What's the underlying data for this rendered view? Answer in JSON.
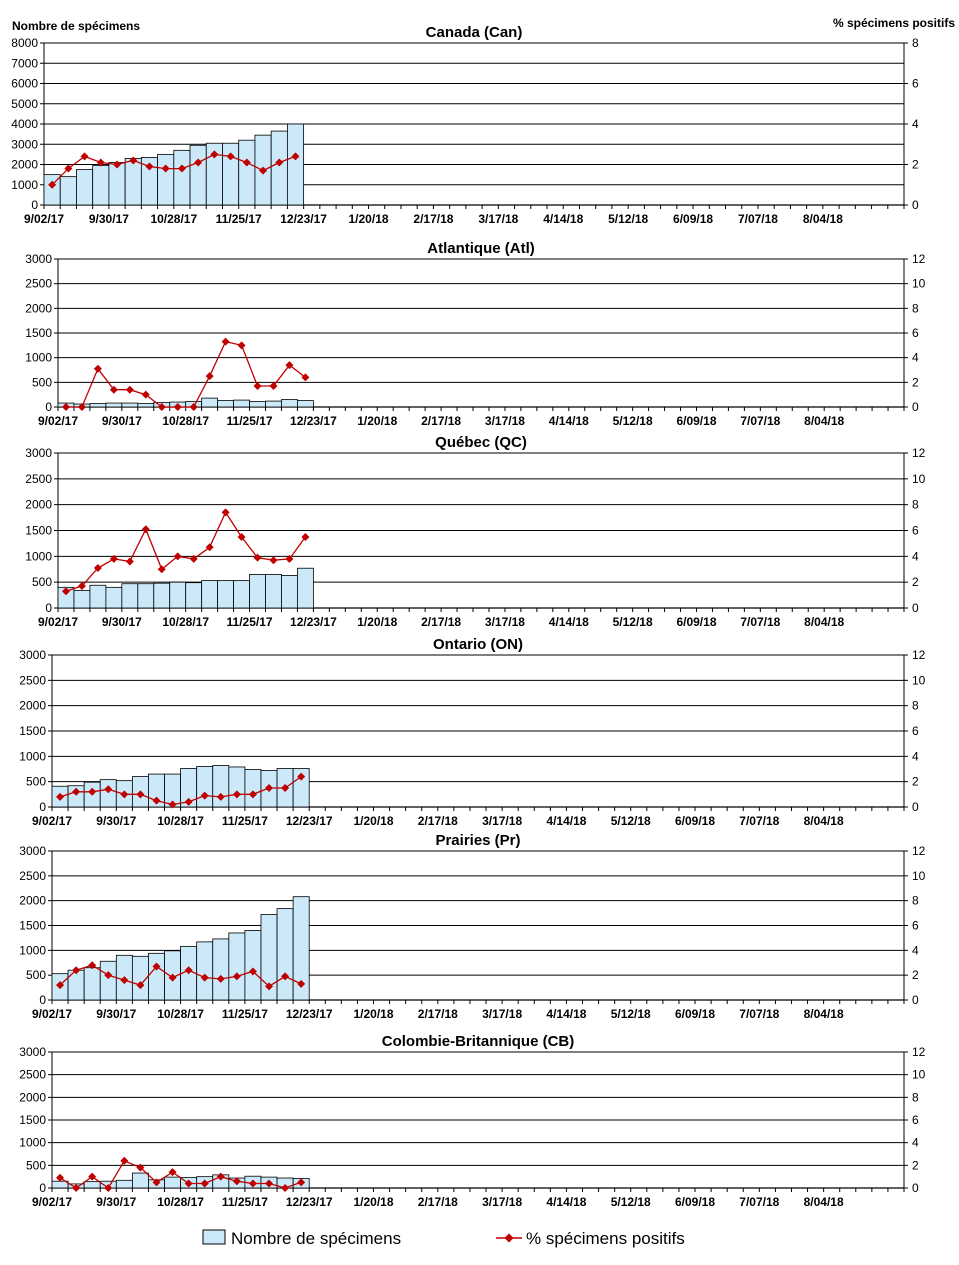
{
  "left_axis_title": "Nombre de spécimens",
  "right_axis_title": "% spécimens positifs",
  "legend": {
    "bars_label": "Nombre de spécimens",
    "line_label": "% spécimens positifs"
  },
  "colors": {
    "bar_fill": "#cce9f9",
    "bar_stroke": "#000000",
    "line": "#c00000",
    "marker": "#c00000"
  },
  "chart_data": [
    {
      "type": "bar",
      "title": "Canada (Can)",
      "x_tick_labels": [
        "9/02/17",
        "9/30/17",
        "10/28/17",
        "11/25/17",
        "12/23/17",
        "1/20/18",
        "2/17/18",
        "3/17/18",
        "4/14/18",
        "5/12/18",
        "6/09/18",
        "7/07/18",
        "8/04/18"
      ],
      "weeks": 53,
      "ylim": [
        0,
        8000
      ],
      "y_ticks": [
        0,
        1000,
        2000,
        3000,
        4000,
        5000,
        6000,
        7000,
        8000
      ],
      "y2lim": [
        0,
        8
      ],
      "y2_ticks": [
        0,
        2,
        4,
        6,
        8
      ],
      "series": [
        {
          "name": "Nombre de spécimens",
          "values": [
            1500,
            1400,
            1750,
            1950,
            2100,
            2300,
            2350,
            2500,
            2700,
            2950,
            3050,
            3050,
            3200,
            3450,
            3650,
            4000
          ]
        },
        {
          "name": "% spécimens positifs",
          "values": [
            1.0,
            1.8,
            2.4,
            2.1,
            2.0,
            2.2,
            1.9,
            1.8,
            1.8,
            2.1,
            2.5,
            2.4,
            2.1,
            1.7,
            2.1,
            2.4
          ]
        }
      ]
    },
    {
      "type": "bar",
      "title": "Atlantique (Atl)",
      "x_tick_labels": [
        "9/02/17",
        "9/30/17",
        "10/28/17",
        "11/25/17",
        "12/23/17",
        "1/20/18",
        "2/17/18",
        "3/17/18",
        "4/14/18",
        "5/12/18",
        "6/09/18",
        "7/07/18",
        "8/04/18"
      ],
      "weeks": 53,
      "ylim": [
        0,
        3000
      ],
      "y_ticks": [
        0,
        500,
        1000,
        1500,
        2000,
        2500,
        3000
      ],
      "y2lim": [
        0,
        12
      ],
      "y2_ticks": [
        0,
        2,
        4,
        6,
        8,
        10,
        12
      ],
      "series": [
        {
          "name": "Nombre de spécimens",
          "values": [
            80,
            60,
            70,
            80,
            80,
            70,
            90,
            100,
            110,
            180,
            130,
            140,
            110,
            120,
            150,
            130
          ]
        },
        {
          "name": "% spécimens positifs",
          "values": [
            0.0,
            0.0,
            3.1,
            1.4,
            1.4,
            1.0,
            0.0,
            0.0,
            0.0,
            2.5,
            5.3,
            5.0,
            1.7,
            1.7,
            3.4,
            2.4
          ]
        }
      ]
    },
    {
      "type": "bar",
      "title": "Québec (QC)",
      "x_tick_labels": [
        "9/02/17",
        "9/30/17",
        "10/28/17",
        "11/25/17",
        "12/23/17",
        "1/20/18",
        "2/17/18",
        "3/17/18",
        "4/14/18",
        "5/12/18",
        "6/09/18",
        "7/07/18",
        "8/04/18"
      ],
      "weeks": 53,
      "ylim": [
        0,
        3000
      ],
      "y_ticks": [
        0,
        500,
        1000,
        1500,
        2000,
        2500,
        3000
      ],
      "y2lim": [
        0,
        12
      ],
      "y2_ticks": [
        0,
        2,
        4,
        6,
        8,
        10,
        12
      ],
      "series": [
        {
          "name": "Nombre de spécimens",
          "values": [
            400,
            340,
            440,
            400,
            470,
            470,
            480,
            500,
            490,
            530,
            530,
            530,
            650,
            650,
            630,
            770
          ]
        },
        {
          "name": "% spécimens positifs",
          "values": [
            1.3,
            1.7,
            3.1,
            3.8,
            3.6,
            6.1,
            3.0,
            4.0,
            3.8,
            4.7,
            7.4,
            5.5,
            3.9,
            3.7,
            3.8,
            5.5
          ]
        }
      ]
    },
    {
      "type": "bar",
      "title": "Ontario (ON)",
      "x_tick_labels": [
        "9/02/17",
        "9/30/17",
        "10/28/17",
        "11/25/17",
        "12/23/17",
        "1/20/18",
        "2/17/18",
        "3/17/18",
        "4/14/18",
        "5/12/18",
        "6/09/18",
        "7/07/18",
        "8/04/18"
      ],
      "weeks": 53,
      "ylim": [
        0,
        3000
      ],
      "y_ticks": [
        0,
        500,
        1000,
        1500,
        2000,
        2500,
        3000
      ],
      "y2lim": [
        0,
        12
      ],
      "y2_ticks": [
        0,
        2,
        4,
        6,
        8,
        10,
        12
      ],
      "series": [
        {
          "name": "Nombre de spécimens",
          "values": [
            410,
            420,
            490,
            540,
            520,
            600,
            650,
            650,
            760,
            800,
            820,
            790,
            740,
            720,
            760,
            760
          ]
        },
        {
          "name": "% spécimens positifs",
          "values": [
            0.8,
            1.2,
            1.2,
            1.4,
            1.0,
            1.0,
            0.5,
            0.2,
            0.4,
            0.9,
            0.8,
            1.0,
            1.0,
            1.5,
            1.5,
            2.4
          ]
        }
      ]
    },
    {
      "type": "bar",
      "title": "Prairies (Pr)",
      "x_tick_labels": [
        "9/02/17",
        "9/30/17",
        "10/28/17",
        "11/25/17",
        "12/23/17",
        "1/20/18",
        "2/17/18",
        "3/17/18",
        "4/14/18",
        "5/12/18",
        "6/09/18",
        "7/07/18",
        "8/04/18"
      ],
      "weeks": 53,
      "ylim": [
        0,
        3000
      ],
      "y_ticks": [
        0,
        500,
        1000,
        1500,
        2000,
        2500,
        3000
      ],
      "y2lim": [
        0,
        12
      ],
      "y2_ticks": [
        0,
        2,
        4,
        6,
        8,
        10,
        12
      ],
      "series": [
        {
          "name": "Nombre de spécimens",
          "values": [
            530,
            600,
            650,
            780,
            900,
            880,
            940,
            990,
            1080,
            1170,
            1230,
            1350,
            1400,
            1720,
            1840,
            2080
          ]
        },
        {
          "name": "% spécimens positifs",
          "values": [
            1.2,
            2.4,
            2.8,
            2.0,
            1.6,
            1.2,
            2.7,
            1.8,
            2.4,
            1.8,
            1.7,
            1.9,
            2.3,
            1.1,
            1.9,
            1.3
          ]
        }
      ]
    },
    {
      "type": "bar",
      "title": "Colombie-Britannique (CB)",
      "x_tick_labels": [
        "9/02/17",
        "9/30/17",
        "10/28/17",
        "11/25/17",
        "12/23/17",
        "1/20/18",
        "2/17/18",
        "3/17/18",
        "4/14/18",
        "5/12/18",
        "6/09/18",
        "7/07/18",
        "8/04/18"
      ],
      "weeks": 53,
      "ylim": [
        0,
        3000
      ],
      "y_ticks": [
        0,
        500,
        1000,
        1500,
        2000,
        2500,
        3000
      ],
      "y2lim": [
        0,
        12
      ],
      "y2_ticks": [
        0,
        2,
        4,
        6,
        8,
        10,
        12
      ],
      "series": [
        {
          "name": "Nombre de spécimens",
          "values": [
            150,
            90,
            140,
            150,
            170,
            330,
            180,
            240,
            230,
            250,
            290,
            220,
            260,
            240,
            220,
            210
          ]
        },
        {
          "name": "% spécimens positifs",
          "values": [
            0.9,
            0.0,
            1.0,
            0.0,
            2.4,
            1.8,
            0.5,
            1.4,
            0.4,
            0.4,
            1.0,
            0.6,
            0.4,
            0.4,
            0.0,
            0.5
          ]
        }
      ]
    }
  ]
}
